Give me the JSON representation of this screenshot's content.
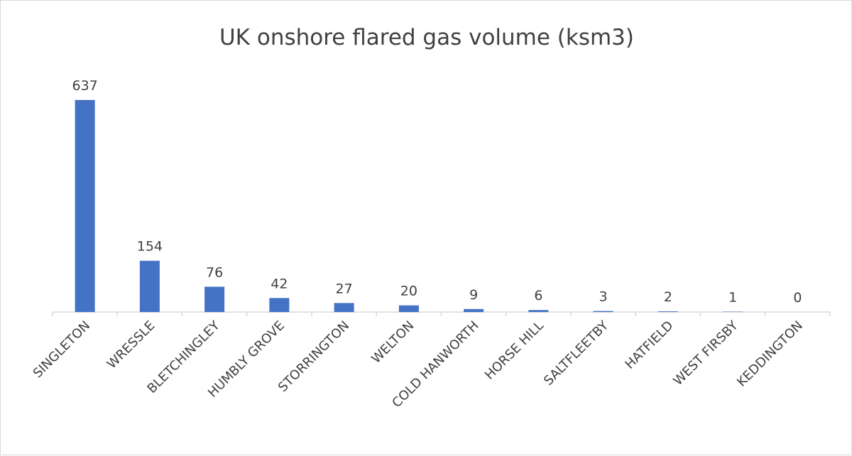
{
  "chart_data": {
    "type": "bar",
    "title": "UK onshore flared gas volume (ksm3)",
    "categories": [
      "SINGLETON",
      "WRESSLE",
      "BLETCHINGLEY",
      "HUMBLY GROVE",
      "STORRINGTON",
      "WELTON",
      "COLD HANWORTH",
      "HORSE HILL",
      "SALTFLEETBY",
      "HATFIELD",
      "WEST FIRSBY",
      "KEDDINGTON"
    ],
    "values": [
      637,
      154,
      76,
      42,
      27,
      20,
      9,
      6,
      3,
      2,
      1,
      0
    ],
    "data_labels": [
      "637",
      "154",
      "76",
      "42",
      "27",
      "20",
      "9",
      "6",
      "3",
      "2",
      "1",
      "0"
    ],
    "xlabel": "",
    "ylabel": "",
    "ylim": [
      0,
      637
    ],
    "grid": false,
    "legend": "none",
    "bar_color": "#4472c4",
    "text_color": "#404040",
    "title_color": "#595959",
    "axis_color": "#d9d9d9"
  }
}
